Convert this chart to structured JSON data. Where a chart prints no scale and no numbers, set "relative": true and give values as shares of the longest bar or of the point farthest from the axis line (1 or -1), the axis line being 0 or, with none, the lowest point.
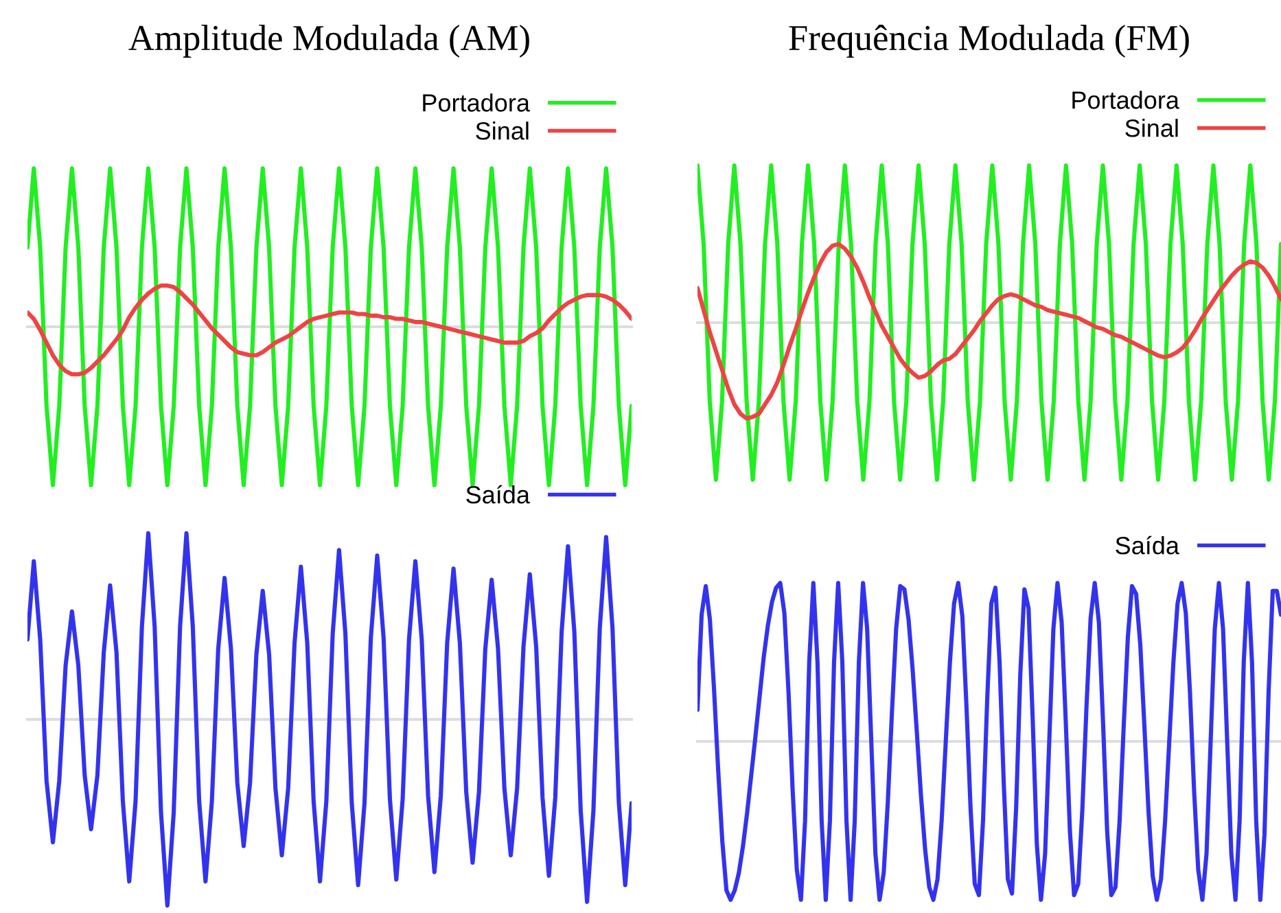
{
  "chart_data": [
    {
      "type": "line",
      "title": "Amplitude Modulada (AM)",
      "relative": true,
      "tick_labels": false,
      "legend": "top right",
      "line_style": "solid",
      "marker": "none",
      "categories": [
        null,
        null,
        null,
        null,
        null,
        null,
        null,
        null,
        null,
        null,
        null,
        null,
        null,
        null,
        null,
        null,
        null,
        null,
        null,
        null,
        null,
        null,
        null,
        null,
        null,
        null,
        null,
        null,
        null,
        null,
        null,
        null,
        null,
        null,
        null,
        null,
        null,
        null,
        null,
        null,
        null,
        null,
        null,
        null,
        null,
        null,
        null,
        null,
        null,
        null,
        null,
        null,
        null,
        null,
        null,
        null,
        null,
        null,
        null,
        null,
        null,
        null,
        null,
        null,
        null,
        null,
        null,
        null,
        null,
        null,
        null,
        null,
        null,
        null,
        null,
        null,
        null,
        null,
        null,
        null,
        null,
        null,
        null,
        null,
        null,
        null,
        null,
        null,
        null,
        null,
        null,
        null,
        null,
        null,
        null,
        null
      ],
      "series": [
        {
          "name": "Portadora",
          "color": "#22ee22",
          "values": [
            0.5,
            1,
            0.5,
            -0.5,
            -1,
            -0.5,
            0.5,
            1,
            0.5,
            -0.5,
            -1,
            -0.5,
            0.5,
            1,
            0.5,
            -0.5,
            -1,
            -0.5,
            0.5,
            1,
            0.5,
            -0.5,
            -1,
            -0.5,
            0.5,
            1,
            0.5,
            -0.5,
            -1,
            -0.5,
            0.5,
            1,
            0.5,
            -0.5,
            -1,
            -0.5,
            0.5,
            1,
            0.5,
            -0.5,
            -1,
            -0.5,
            0.5,
            1,
            0.5,
            -0.5,
            -1,
            -0.5,
            0.5,
            1,
            0.5,
            -0.5,
            -1,
            -0.5,
            0.5,
            1,
            0.5,
            -0.5,
            -1,
            -0.5,
            0.5,
            1,
            0.5,
            -0.5,
            -1,
            -0.5,
            0.5,
            1,
            0.5,
            -0.5,
            -1,
            -0.5,
            0.5,
            1,
            0.5,
            -0.5,
            -1,
            -0.5,
            0.5,
            1,
            0.5,
            -0.5,
            -1,
            -0.5,
            0.5,
            1,
            0.5,
            -0.5,
            -1,
            -0.5,
            0.5,
            1,
            0.5,
            -0.5,
            -1,
            -0.5
          ]
        },
        {
          "name": "Sinal",
          "color": "#ee4444",
          "values": [
            0.09,
            0.05,
            -0.02,
            -0.1,
            -0.18,
            -0.24,
            -0.28,
            -0.3,
            -0.3,
            -0.29,
            -0.26,
            -0.22,
            -0.18,
            -0.13,
            -0.08,
            -0.02,
            0.06,
            0.12,
            0.17,
            0.21,
            0.24,
            0.26,
            0.26,
            0.25,
            0.22,
            0.18,
            0.14,
            0.09,
            0.04,
            -0.01,
            -0.05,
            -0.09,
            -0.13,
            -0.16,
            -0.17,
            -0.18,
            -0.18,
            -0.16,
            -0.13,
            -0.1,
            -0.08,
            -0.06,
            -0.03,
            0,
            0.03,
            0.05,
            0.06,
            0.07,
            0.08,
            0.09,
            0.09,
            0.09,
            0.08,
            0.08,
            0.07,
            0.07,
            0.06,
            0.06,
            0.05,
            0.05,
            0.04,
            0.03,
            0.03,
            0.02,
            0.01,
            0,
            -0.01,
            -0.02,
            -0.03,
            -0.04,
            -0.05,
            -0.06,
            -0.07,
            -0.08,
            -0.09,
            -0.1,
            -0.1,
            -0.1,
            -0.09,
            -0.06,
            -0.04,
            -0.01,
            0.04,
            0.08,
            0.12,
            0.15,
            0.17,
            0.19,
            0.2,
            0.2,
            0.2,
            0.19,
            0.17,
            0.14,
            0.1,
            0.05
          ]
        }
      ]
    },
    {
      "type": "line",
      "title": "Frequência Modulada (FM)",
      "relative": true,
      "tick_labels": false,
      "legend": "top right",
      "line_style": "solid",
      "marker": "none",
      "categories": [
        null,
        null,
        null,
        null,
        null,
        null,
        null,
        null,
        null,
        null,
        null,
        null,
        null,
        null,
        null,
        null,
        null,
        null,
        null,
        null,
        null,
        null,
        null,
        null,
        null,
        null,
        null,
        null,
        null,
        null,
        null,
        null,
        null,
        null,
        null,
        null,
        null,
        null,
        null,
        null,
        null,
        null,
        null,
        null,
        null,
        null,
        null,
        null,
        null,
        null,
        null,
        null,
        null,
        null,
        null,
        null,
        null,
        null,
        null,
        null,
        null,
        null,
        null,
        null,
        null,
        null,
        null,
        null,
        null,
        null,
        null,
        null,
        null,
        null,
        null,
        null,
        null,
        null,
        null,
        null,
        null,
        null,
        null,
        null,
        null,
        null,
        null,
        null,
        null,
        null,
        null,
        null,
        null,
        null,
        null,
        null
      ],
      "series": [
        {
          "name": "Portadora",
          "color": "#22ee22",
          "values": [
            1,
            0.5,
            -0.5,
            -1,
            -0.5,
            0.5,
            1,
            0.5,
            -0.5,
            -1,
            -0.5,
            0.5,
            1,
            0.5,
            -0.5,
            -1,
            -0.5,
            0.5,
            1,
            0.5,
            -0.5,
            -1,
            -0.5,
            0.5,
            1,
            0.5,
            -0.5,
            -1,
            -0.5,
            0.5,
            1,
            0.5,
            -0.5,
            -1,
            -0.5,
            0.5,
            1,
            0.5,
            -0.5,
            -1,
            -0.5,
            0.5,
            1,
            0.5,
            -0.5,
            -1,
            -0.5,
            0.5,
            1,
            0.5,
            -0.5,
            -1,
            -0.5,
            0.5,
            1,
            0.5,
            -0.5,
            -1,
            -0.5,
            0.5,
            1,
            0.5,
            -0.5,
            -1,
            -0.5,
            0.5,
            1,
            0.5,
            -0.5,
            -1,
            -0.5,
            0.5,
            1,
            0.5,
            -0.5,
            -1,
            -0.5,
            0.5,
            1,
            0.5,
            -0.5,
            -1,
            -0.5,
            0.5,
            1,
            0.5,
            -0.5,
            -1,
            -0.5,
            0.5,
            1,
            0.5,
            -0.5,
            -1,
            -0.5,
            0.5
          ]
        },
        {
          "name": "Sinal",
          "color": "#ee4444",
          "values": [
            0.22,
            0.08,
            -0.06,
            -0.18,
            -0.3,
            -0.42,
            -0.52,
            -0.58,
            -0.61,
            -0.6,
            -0.58,
            -0.52,
            -0.46,
            -0.38,
            -0.27,
            -0.15,
            -0.04,
            0.08,
            0.19,
            0.29,
            0.38,
            0.45,
            0.49,
            0.5,
            0.47,
            0.42,
            0.35,
            0.26,
            0.16,
            0.07,
            -0.02,
            -0.09,
            -0.16,
            -0.23,
            -0.28,
            -0.32,
            -0.35,
            -0.34,
            -0.31,
            -0.27,
            -0.24,
            -0.23,
            -0.2,
            -0.15,
            -0.1,
            -0.05,
            0.01,
            0.06,
            0.11,
            0.15,
            0.17,
            0.18,
            0.17,
            0.15,
            0.13,
            0.11,
            0.1,
            0.08,
            0.07,
            0.06,
            0.05,
            0.04,
            0.03,
            0.01,
            -0.01,
            -0.03,
            -0.04,
            -0.06,
            -0.08,
            -0.09,
            -0.11,
            -0.13,
            -0.15,
            -0.17,
            -0.19,
            -0.21,
            -0.22,
            -0.21,
            -0.19,
            -0.16,
            -0.11,
            -0.05,
            0.02,
            0.08,
            0.14,
            0.2,
            0.25,
            0.3,
            0.34,
            0.37,
            0.39,
            0.38,
            0.35,
            0.3,
            0.23,
            0.15
          ]
        }
      ]
    },
    {
      "type": "line",
      "relative": true,
      "tick_labels": false,
      "legend": "top right",
      "line_style": "solid",
      "marker": "none",
      "categories": [
        null,
        null,
        null,
        null,
        null,
        null,
        null,
        null,
        null,
        null,
        null,
        null,
        null,
        null,
        null,
        null,
        null,
        null,
        null,
        null,
        null,
        null,
        null,
        null,
        null,
        null,
        null,
        null,
        null,
        null,
        null,
        null,
        null,
        null,
        null,
        null,
        null,
        null,
        null,
        null,
        null,
        null,
        null,
        null,
        null,
        null,
        null,
        null,
        null,
        null,
        null,
        null,
        null,
        null,
        null,
        null,
        null,
        null,
        null,
        null,
        null,
        null,
        null,
        null,
        null,
        null,
        null,
        null,
        null,
        null,
        null,
        null,
        null,
        null,
        null,
        null,
        null,
        null,
        null,
        null,
        null,
        null,
        null,
        null,
        null,
        null,
        null,
        null,
        null,
        null,
        null,
        null,
        null,
        null,
        null,
        null
      ],
      "series": [
        {
          "name": "Saída",
          "color": "#3333ee",
          "values": [
            0.43,
            0.85,
            0.43,
            -0.33,
            -0.66,
            -0.33,
            0.29,
            0.58,
            0.29,
            -0.3,
            -0.59,
            -0.3,
            0.36,
            0.72,
            0.36,
            -0.44,
            -0.87,
            -0.44,
            0.5,
            1,
            0.5,
            -0.5,
            -1,
            -0.5,
            0.5,
            1,
            0.5,
            -0.44,
            -0.87,
            -0.44,
            0.38,
            0.76,
            0.38,
            -0.34,
            -0.68,
            -0.34,
            0.35,
            0.69,
            0.35,
            -0.37,
            -0.73,
            -0.37,
            0.41,
            0.82,
            0.41,
            -0.44,
            -0.87,
            -0.44,
            0.46,
            0.91,
            0.46,
            -0.45,
            -0.89,
            -0.45,
            0.44,
            0.88,
            0.44,
            -0.43,
            -0.86,
            -0.43,
            0.43,
            0.85,
            0.43,
            -0.41,
            -0.82,
            -0.41,
            0.41,
            0.81,
            0.41,
            -0.39,
            -0.77,
            -0.39,
            0.38,
            0.75,
            0.38,
            -0.37,
            -0.73,
            -0.37,
            0.39,
            0.78,
            0.39,
            -0.42,
            -0.84,
            -0.42,
            0.47,
            0.93,
            0.47,
            -0.49,
            -0.98,
            -0.49,
            0.49,
            0.98,
            0.49,
            -0.45,
            -0.89,
            -0.45
          ]
        }
      ]
    },
    {
      "type": "line",
      "relative": true,
      "tick_labels": false,
      "legend": "top right",
      "line_style": "solid",
      "marker": "none",
      "categories": [
        null,
        null,
        null,
        null,
        null,
        null,
        null,
        null,
        null,
        null,
        null,
        null,
        null,
        null,
        null,
        null,
        null,
        null,
        null,
        null,
        null,
        null,
        null,
        null,
        null,
        null,
        null,
        null,
        null,
        null,
        null,
        null,
        null,
        null,
        null,
        null,
        null,
        null,
        null,
        null,
        null,
        null,
        null,
        null,
        null,
        null,
        null,
        null,
        null,
        null,
        null,
        null,
        null,
        null,
        null,
        null,
        null,
        null,
        null,
        null,
        null,
        null,
        null,
        null,
        null,
        null,
        null,
        null,
        null,
        null,
        null,
        null,
        null,
        null,
        null,
        null,
        null,
        null,
        null,
        null,
        null,
        null,
        null,
        null,
        null,
        null,
        null,
        null,
        null,
        null,
        null,
        null,
        null,
        null,
        null,
        null,
        null,
        null,
        null,
        null,
        null,
        null,
        null,
        null,
        null,
        null,
        null,
        null,
        null,
        null,
        null,
        null,
        null,
        null,
        null,
        null,
        null,
        null,
        null,
        null,
        null,
        null,
        null,
        null,
        null,
        null,
        null,
        null,
        null,
        null,
        null,
        null,
        null,
        null,
        null,
        null,
        null,
        null,
        null,
        null,
        null,
        null
      ],
      "series": [
        {
          "name": "Saída",
          "color": "#3333ee",
          "values": [
            0.2,
            0.8,
            0.98,
            0.77,
            0.33,
            -0.18,
            -0.63,
            -0.94,
            -1,
            -0.94,
            -0.83,
            -0.66,
            -0.45,
            -0.21,
            0.03,
            0.28,
            0.53,
            0.73,
            0.88,
            0.97,
            1,
            0.81,
            0.31,
            -0.31,
            -0.81,
            -1,
            -0.5,
            0.5,
            1,
            0.5,
            -0.5,
            -1,
            -0.5,
            0.5,
            1,
            0.5,
            -0.5,
            -1,
            -0.5,
            0.5,
            1,
            0.71,
            0,
            -0.71,
            -1,
            -0.83,
            -0.38,
            0.19,
            0.71,
            0.98,
            0.96,
            0.77,
            0.45,
            0.06,
            -0.34,
            -0.68,
            -0.92,
            -1,
            -0.87,
            -0.5,
            0,
            0.5,
            0.87,
            1,
            0.79,
            0.22,
            -0.43,
            -0.9,
            -0.97,
            -0.5,
            0.26,
            0.87,
            0.97,
            0.5,
            -0.26,
            -0.87,
            -0.96,
            -0.42,
            0.42,
            0.96,
            0.84,
            0.14,
            -0.65,
            -1,
            -0.71,
            0,
            0.71,
            1,
            0.75,
            0.12,
            -0.57,
            -0.97,
            -0.9,
            -0.43,
            0.22,
            0.78,
            1,
            0.75,
            0.12,
            -0.57,
            -0.97,
            -0.92,
            -0.5,
            0.1,
            0.66,
            0.98,
            0.93,
            0.61,
            0.09,
            -0.45,
            -0.85,
            -1,
            -0.87,
            -0.5,
            0,
            0.5,
            0.87,
            1,
            0.81,
            0.31,
            -0.31,
            -0.81,
            -1,
            -0.71,
            0,
            0.71,
            1,
            0.71,
            0,
            -0.71,
            -1,
            -0.5,
            0.5,
            1,
            0.5,
            -0.5,
            -1,
            -0.59,
            0.31,
            0.95,
            0.95,
            0.8
          ]
        }
      ]
    }
  ]
}
